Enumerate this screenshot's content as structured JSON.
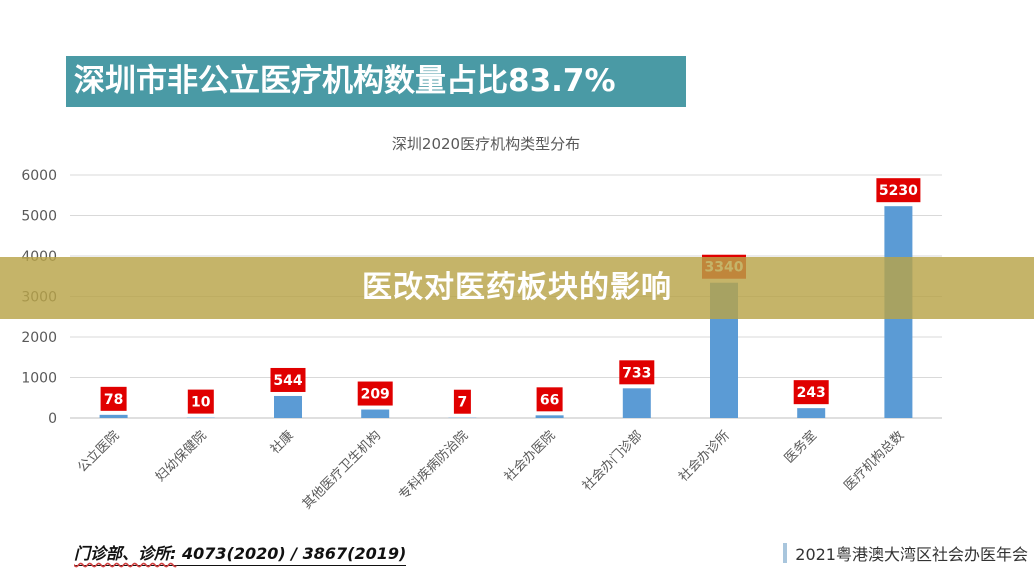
{
  "page": {
    "banner_title": "深圳市非公立医疗机构数量占比83.7%",
    "overlay_text": "医改对医药板块的影响",
    "footnote_label": "门诊部、诊所:",
    "footnote_values": " 4073(2020) / 3867(2019)",
    "event_label": "2021粤港澳大湾区社会办医年会"
  },
  "colors": {
    "bar": "#5b9bd5",
    "data_label_bg": "#e00000",
    "banner": "#4a9aa5",
    "overlay": "#b8a448"
  },
  "chart_data": {
    "type": "bar",
    "title": "深圳2020医疗机构类型分布",
    "categories": [
      "公立医院",
      "妇幼保健院",
      "社康",
      "其他医疗卫生机构",
      "专科疾病防治院",
      "社会办医院",
      "社会办门诊部",
      "社会办诊所",
      "医务室",
      "医疗机构总数"
    ],
    "values": [
      78,
      10,
      544,
      209,
      7,
      66,
      733,
      3340,
      243,
      5230
    ],
    "y_ticks": [
      0,
      1000,
      2000,
      3000,
      4000,
      5000,
      6000
    ],
    "ylim": [
      0,
      6000
    ],
    "grid": true,
    "legend": "none"
  }
}
